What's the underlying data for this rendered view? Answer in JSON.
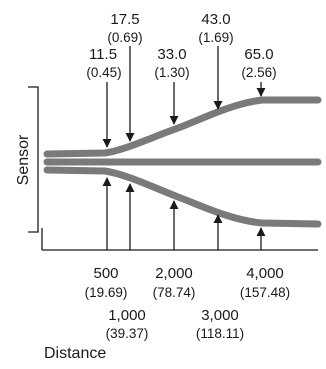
{
  "axis": {
    "vertical_label": "Sensor",
    "horizontal_label": "Distance"
  },
  "curve_color": "#7a7a7a",
  "top_markers": [
    {
      "value": "11.5",
      "sub": "(0.45)"
    },
    {
      "value": "17.5",
      "sub": "(0.69)"
    },
    {
      "value": "33.0",
      "sub": "(1.30)"
    },
    {
      "value": "43.0",
      "sub": "(1.69)"
    },
    {
      "value": "65.0",
      "sub": "(2.56)"
    }
  ],
  "bottom_markers": [
    {
      "value": "500",
      "sub": "(19.69)"
    },
    {
      "value": "1,000",
      "sub": "(39.37)"
    },
    {
      "value": "2,000",
      "sub": "(78.74)"
    },
    {
      "value": "3,000",
      "sub": "(118.11)"
    },
    {
      "value": "4,000",
      "sub": "(157.48)"
    }
  ]
}
